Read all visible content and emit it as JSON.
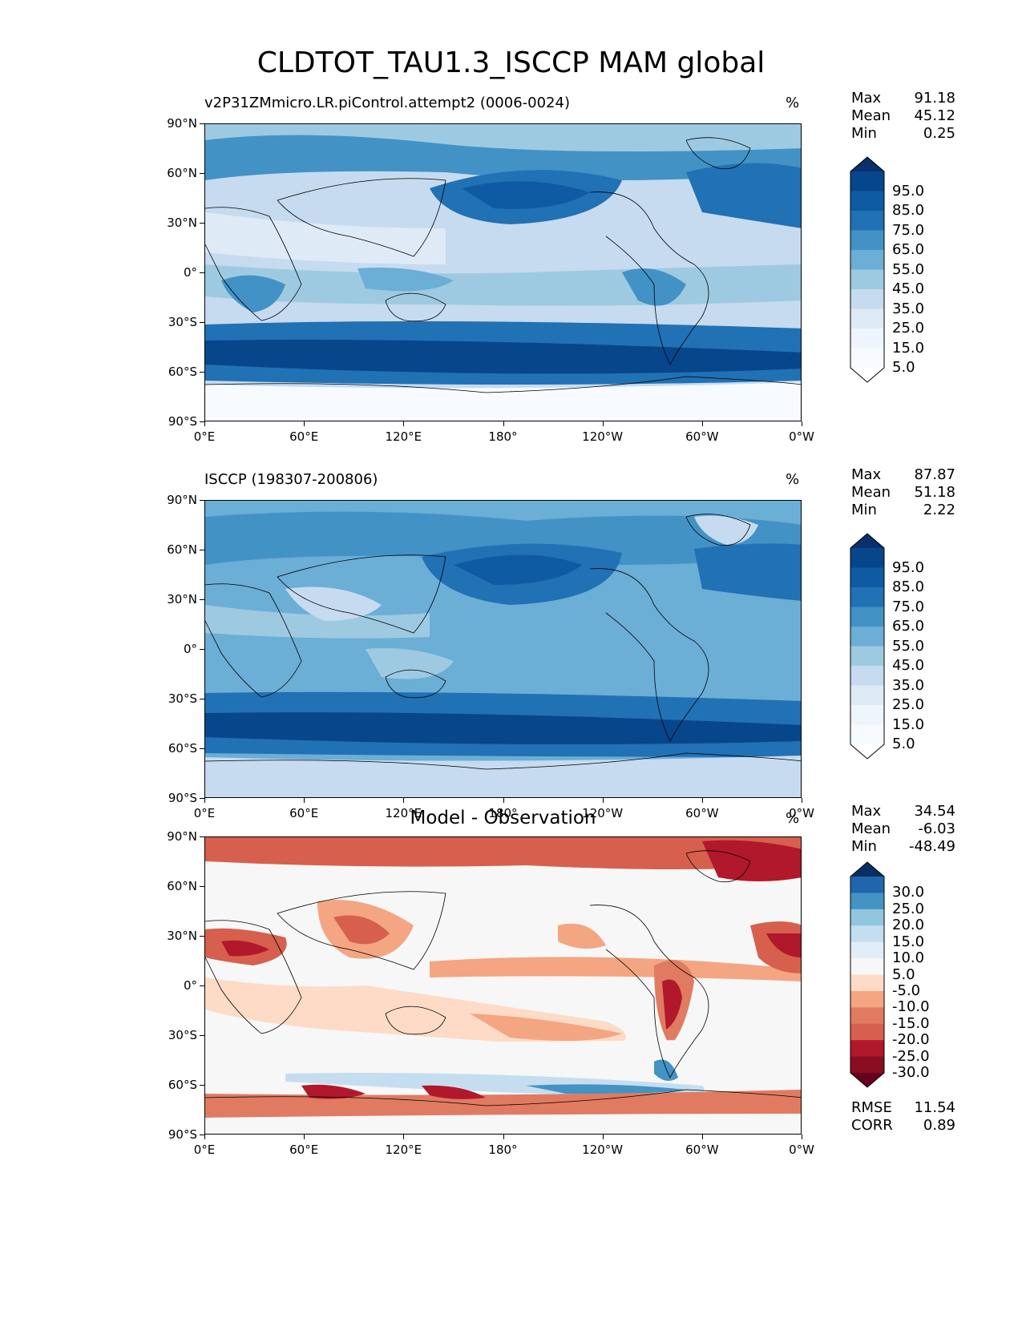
{
  "figure": {
    "suptitle": "CLDTOT_TAU1.3_ISCCP MAM global"
  },
  "axes": {
    "yticks": [
      "90°N",
      "60°N",
      "30°N",
      "0°",
      "30°S",
      "60°S",
      "90°S"
    ],
    "xticks": [
      "0°E",
      "60°E",
      "120°E",
      "180°",
      "120°W",
      "60°W",
      "0°W"
    ]
  },
  "panels": [
    {
      "title": "v2P31ZMmicro.LR.piControl.attempt2 (0006-0024)",
      "units": "%",
      "stats": [
        {
          "label": "Max",
          "value": "91.18"
        },
        {
          "label": "Mean",
          "value": "45.12"
        },
        {
          "label": "Min",
          "value": "0.25"
        }
      ],
      "colorbar": {
        "labels": [
          "95.0",
          "85.0",
          "75.0",
          "65.0",
          "55.0",
          "45.0",
          "35.0",
          "25.0",
          "15.0",
          "5.0"
        ],
        "colors": [
          "#08306b",
          "#08468c",
          "#0f5ba3",
          "#2171b5",
          "#4292c6",
          "#6baed6",
          "#9ecae1",
          "#c6dbef",
          "#deebf7",
          "#eef5fc",
          "#f7fbff",
          "#ffffff"
        ]
      },
      "footer": []
    },
    {
      "title": "ISCCP (198307-200806)",
      "units": "%",
      "stats": [
        {
          "label": "Max",
          "value": "87.87"
        },
        {
          "label": "Mean",
          "value": "51.18"
        },
        {
          "label": "Min",
          "value": "2.22"
        }
      ],
      "colorbar": {
        "labels": [
          "95.0",
          "85.0",
          "75.0",
          "65.0",
          "55.0",
          "45.0",
          "35.0",
          "25.0",
          "15.0",
          "5.0"
        ],
        "colors": [
          "#08306b",
          "#08468c",
          "#0f5ba3",
          "#2171b5",
          "#4292c6",
          "#6baed6",
          "#9ecae1",
          "#c6dbef",
          "#deebf7",
          "#eef5fc",
          "#f7fbff",
          "#ffffff"
        ]
      },
      "footer": []
    },
    {
      "title": "Model - Observation",
      "units": "%",
      "stats": [
        {
          "label": "Max",
          "value": "34.54"
        },
        {
          "label": "Mean",
          "value": "-6.03"
        },
        {
          "label": "Min",
          "value": "-48.49"
        }
      ],
      "colorbar": {
        "labels": [
          "30.0",
          "25.0",
          "20.0",
          "15.0",
          "10.0",
          "5.0",
          "-5.0",
          "-10.0",
          "-15.0",
          "-20.0",
          "-25.0",
          "-30.0"
        ],
        "colors": [
          "#053061",
          "#2166ac",
          "#4393c3",
          "#92c5de",
          "#c4def0",
          "#e2eef7",
          "#f7f7f7",
          "#fddbc7",
          "#f4a582",
          "#e07b62",
          "#d6604d",
          "#b2182b",
          "#8b0d22",
          "#67001f"
        ]
      },
      "footer": [
        {
          "label": "RMSE",
          "value": "11.54"
        },
        {
          "label": "CORR",
          "value": "0.89"
        }
      ]
    }
  ]
}
